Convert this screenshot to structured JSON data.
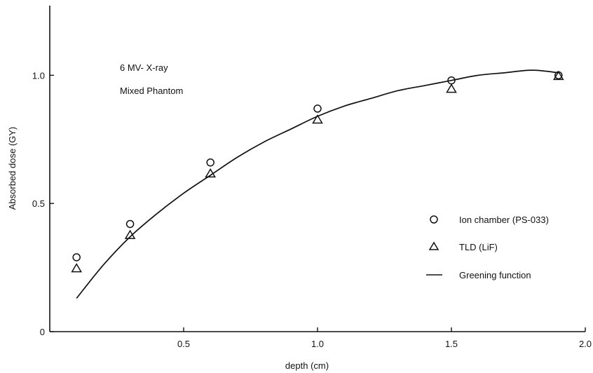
{
  "chart_data": {
    "type": "scatter",
    "xlabel": "depth (cm)",
    "ylabel": "Absorbed dose (GY)",
    "xlim": [
      0,
      2.0
    ],
    "ylim": [
      0,
      1.25
    ],
    "x_ticks": [
      {
        "value": 0.5,
        "label": "0.5"
      },
      {
        "value": 1.0,
        "label": "1.0"
      },
      {
        "value": 1.5,
        "label": "1.5"
      },
      {
        "value": 2.0,
        "label": "2.0"
      }
    ],
    "y_ticks": [
      {
        "value": 0,
        "label": "0"
      },
      {
        "value": 0.5,
        "label": "0.5"
      },
      {
        "value": 1.0,
        "label": "1.0"
      }
    ],
    "annotations": [
      "6 MV- X-ray",
      "Mixed Phantom"
    ],
    "legend_position": "right",
    "grid": false,
    "series": [
      {
        "name": "Ion chamber (PS-033)",
        "marker": "circle",
        "points": [
          {
            "x": 0.1,
            "y": 0.29
          },
          {
            "x": 0.3,
            "y": 0.42
          },
          {
            "x": 0.6,
            "y": 0.66
          },
          {
            "x": 1.0,
            "y": 0.87
          },
          {
            "x": 1.5,
            "y": 0.98
          },
          {
            "x": 1.9,
            "y": 1.0
          }
        ]
      },
      {
        "name": "TLD (LiF)",
        "marker": "triangle",
        "points": [
          {
            "x": 0.1,
            "y": 0.25
          },
          {
            "x": 0.3,
            "y": 0.38
          },
          {
            "x": 0.6,
            "y": 0.62
          },
          {
            "x": 1.0,
            "y": 0.83
          },
          {
            "x": 1.5,
            "y": 0.95
          },
          {
            "x": 1.9,
            "y": 1.0
          }
        ]
      },
      {
        "name": "Greening function",
        "marker": "line",
        "points": [
          {
            "x": 0.1,
            "y": 0.13
          },
          {
            "x": 0.2,
            "y": 0.26
          },
          {
            "x": 0.3,
            "y": 0.37
          },
          {
            "x": 0.4,
            "y": 0.46
          },
          {
            "x": 0.5,
            "y": 0.54
          },
          {
            "x": 0.6,
            "y": 0.61
          },
          {
            "x": 0.7,
            "y": 0.68
          },
          {
            "x": 0.8,
            "y": 0.74
          },
          {
            "x": 0.9,
            "y": 0.79
          },
          {
            "x": 1.0,
            "y": 0.84
          },
          {
            "x": 1.1,
            "y": 0.88
          },
          {
            "x": 1.2,
            "y": 0.91
          },
          {
            "x": 1.3,
            "y": 0.94
          },
          {
            "x": 1.4,
            "y": 0.96
          },
          {
            "x": 1.5,
            "y": 0.98
          },
          {
            "x": 1.6,
            "y": 1.0
          },
          {
            "x": 1.7,
            "y": 1.01
          },
          {
            "x": 1.8,
            "y": 1.02
          },
          {
            "x": 1.9,
            "y": 1.01
          }
        ]
      }
    ]
  }
}
